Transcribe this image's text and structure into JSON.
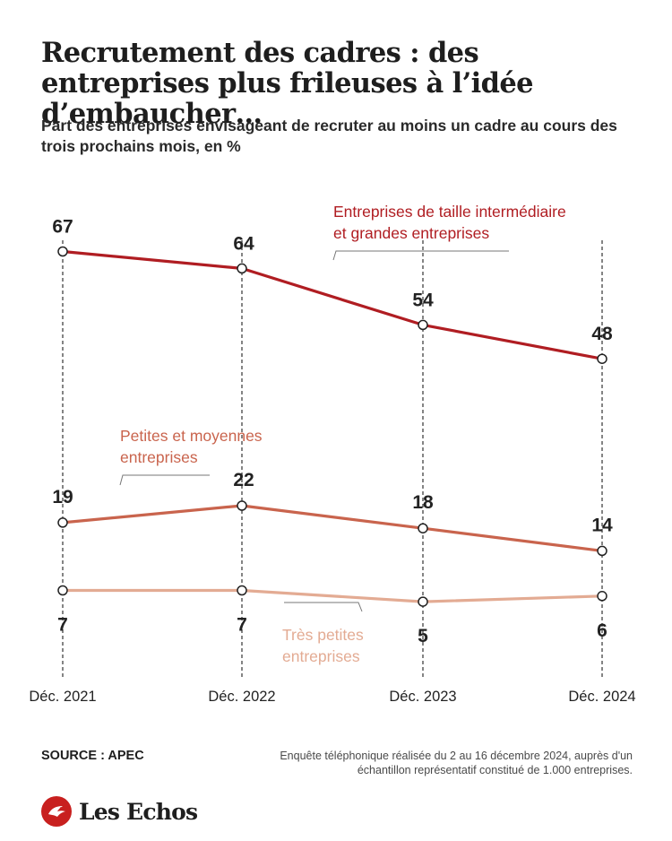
{
  "header": {
    "title": "Recrutement des cadres : des entreprises plus frileuses à l’idée d’embaucher…",
    "subtitle": "Part des entreprises envisageant de recruter au moins un cadre au cours des trois prochains mois, en %"
  },
  "chart_data": {
    "type": "line",
    "categories": [
      "Déc. 2021",
      "Déc. 2022",
      "Déc. 2023",
      "Déc. 2024"
    ],
    "ylim": [
      0,
      70
    ],
    "grid": false,
    "series": [
      {
        "name": "Entreprises de taille intermédiaire et grandes entreprises",
        "values": [
          67,
          64,
          54,
          48
        ],
        "color": "#b01d22"
      },
      {
        "name": "Petites et moyennes entreprises",
        "values": [
          19,
          22,
          18,
          14
        ],
        "color": "#c9644d"
      },
      {
        "name": "Très petites entreprises",
        "values": [
          7,
          7,
          5,
          6
        ],
        "color": "#e3ab93"
      }
    ]
  },
  "footer": {
    "source": "SOURCE : APEC",
    "note": "Enquête téléphonique réalisée du 2 au 16 décembre 2024, auprès d'un échantillon représentatif constitué de 1.000 entreprises.",
    "brand": "Les Echos",
    "brand_color": "#c8201f"
  }
}
